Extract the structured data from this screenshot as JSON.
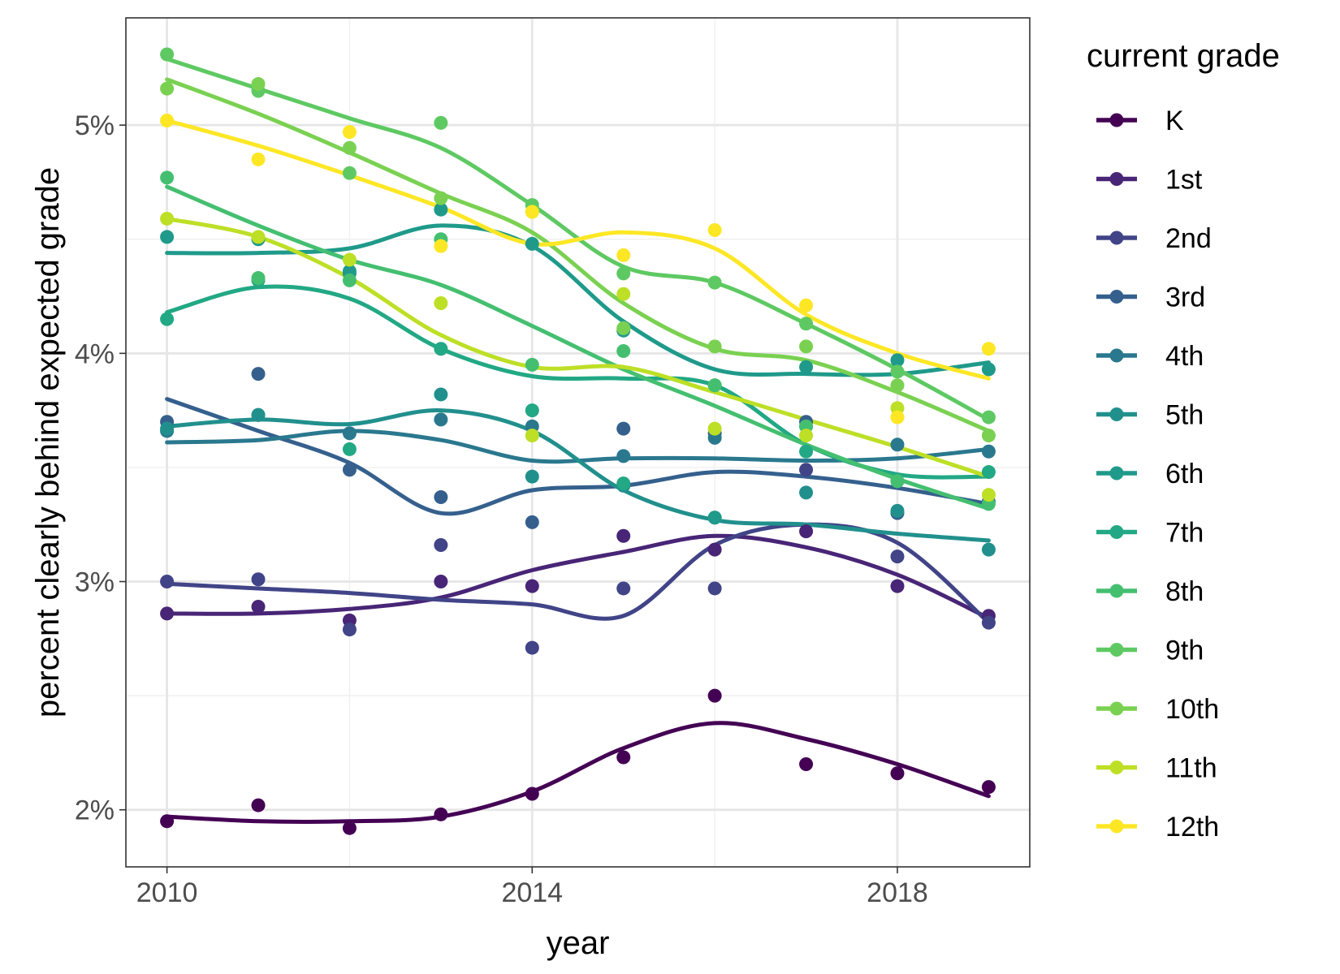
{
  "chart_data": {
    "type": "scatter",
    "title": "",
    "xlabel": "year",
    "ylabel": "percent clearly behind expected grade",
    "xlim": [
      2009.55,
      2019.45
    ],
    "ylim": [
      1.75,
      5.47
    ],
    "x_ticks": [
      2010,
      2014,
      2018
    ],
    "x_tick_labels": [
      "2010",
      "2014",
      "2018"
    ],
    "y_ticks": [
      2,
      3,
      4,
      5
    ],
    "y_tick_labels": [
      "2%",
      "3%",
      "4%",
      "5%"
    ],
    "y_minor_ticks": [
      2.5,
      3.5,
      4.5
    ],
    "grid": true,
    "legend_title": "current grade",
    "legend_position": "right",
    "smoothed_trend_lines": true,
    "x": [
      2010,
      2011,
      2012,
      2013,
      2014,
      2015,
      2016,
      2017,
      2018,
      2019
    ],
    "series": [
      {
        "name": "K",
        "color": "#440154",
        "values": [
          1.95,
          2.02,
          1.92,
          1.98,
          2.07,
          2.23,
          2.5,
          2.2,
          2.16,
          2.1
        ],
        "trend": [
          1.97,
          1.95,
          1.95,
          1.97,
          2.08,
          2.27,
          2.38,
          2.31,
          2.2,
          2.06
        ]
      },
      {
        "name": "1st",
        "color": "#482576",
        "values": [
          2.86,
          2.89,
          2.83,
          3.0,
          2.98,
          3.2,
          3.14,
          3.22,
          2.98,
          2.85
        ],
        "trend": [
          2.86,
          2.86,
          2.88,
          2.93,
          3.05,
          3.13,
          3.2,
          3.15,
          3.03,
          2.84
        ]
      },
      {
        "name": "2nd",
        "color": "#414487",
        "values": [
          3.0,
          3.01,
          2.79,
          3.16,
          2.71,
          2.97,
          2.97,
          3.49,
          3.11,
          2.82
        ],
        "trend": [
          2.99,
          2.97,
          2.95,
          2.92,
          2.9,
          2.85,
          3.16,
          3.25,
          3.17,
          2.82
        ]
      },
      {
        "name": "3rd",
        "color": "#35608d",
        "values": [
          3.7,
          3.91,
          3.49,
          3.37,
          3.26,
          3.67,
          3.65,
          3.7,
          3.3,
          3.35
        ],
        "trend": [
          3.8,
          3.66,
          3.52,
          3.3,
          3.4,
          3.42,
          3.48,
          3.46,
          3.41,
          3.34
        ]
      },
      {
        "name": "4th",
        "color": "#2a788e",
        "values": [
          3.66,
          3.73,
          3.65,
          3.71,
          3.68,
          3.55,
          3.63,
          3.68,
          3.6,
          3.57
        ],
        "trend": [
          3.61,
          3.62,
          3.66,
          3.62,
          3.53,
          3.54,
          3.54,
          3.53,
          3.54,
          3.58
        ]
      },
      {
        "name": "5th",
        "color": "#21908d",
        "values": [
          3.67,
          3.73,
          4.35,
          3.82,
          3.46,
          3.42,
          3.28,
          3.39,
          3.31,
          3.14
        ],
        "trend": [
          3.68,
          3.71,
          3.69,
          3.75,
          3.66,
          3.4,
          3.27,
          3.25,
          3.21,
          3.18
        ]
      },
      {
        "name": "6th",
        "color": "#1f9a8a",
        "values": [
          4.51,
          4.5,
          4.36,
          4.63,
          4.48,
          4.1,
          3.28,
          3.94,
          3.97,
          3.93
        ],
        "trend": [
          4.44,
          4.44,
          4.46,
          4.56,
          4.47,
          4.14,
          3.93,
          3.91,
          3.91,
          3.96
        ]
      },
      {
        "name": "7th",
        "color": "#22a884",
        "values": [
          4.15,
          4.32,
          3.58,
          4.02,
          3.75,
          3.43,
          3.86,
          3.57,
          3.44,
          3.48
        ],
        "trend": [
          4.18,
          4.29,
          4.24,
          4.02,
          3.9,
          3.89,
          3.86,
          3.6,
          3.47,
          3.46
        ]
      },
      {
        "name": "8th",
        "color": "#44bf70",
        "values": [
          4.77,
          4.33,
          4.32,
          4.5,
          3.95,
          4.01,
          3.86,
          3.68,
          3.44,
          3.34
        ],
        "trend": [
          4.73,
          4.56,
          4.41,
          4.3,
          4.12,
          3.93,
          3.77,
          3.6,
          3.45,
          3.32
        ]
      },
      {
        "name": "9th",
        "color": "#5ec962",
        "values": [
          5.31,
          5.15,
          4.79,
          5.01,
          4.65,
          4.35,
          4.31,
          4.13,
          3.92,
          3.72
        ],
        "trend": [
          5.29,
          5.16,
          5.03,
          4.9,
          4.65,
          4.38,
          4.31,
          4.13,
          3.93,
          3.71
        ]
      },
      {
        "name": "10th",
        "color": "#7ad151",
        "values": [
          5.16,
          5.18,
          4.9,
          4.68,
          4.62,
          4.11,
          4.03,
          4.03,
          3.86,
          3.64
        ],
        "trend": [
          5.2,
          5.05,
          4.88,
          4.7,
          4.53,
          4.22,
          4.02,
          3.97,
          3.83,
          3.66
        ]
      },
      {
        "name": "11th",
        "color": "#bddf26",
        "values": [
          4.59,
          4.51,
          4.41,
          4.22,
          3.64,
          4.26,
          3.67,
          3.64,
          3.76,
          3.38
        ],
        "trend": [
          4.59,
          4.51,
          4.33,
          4.08,
          3.94,
          3.94,
          3.83,
          3.71,
          3.59,
          3.46
        ]
      },
      {
        "name": "12th",
        "color": "#fde725",
        "values": [
          5.02,
          4.85,
          4.97,
          4.47,
          4.62,
          4.43,
          4.54,
          4.21,
          3.72,
          4.02
        ],
        "trend": [
          5.02,
          4.91,
          4.78,
          4.64,
          4.48,
          4.53,
          4.46,
          4.17,
          4.0,
          3.89
        ]
      }
    ]
  }
}
